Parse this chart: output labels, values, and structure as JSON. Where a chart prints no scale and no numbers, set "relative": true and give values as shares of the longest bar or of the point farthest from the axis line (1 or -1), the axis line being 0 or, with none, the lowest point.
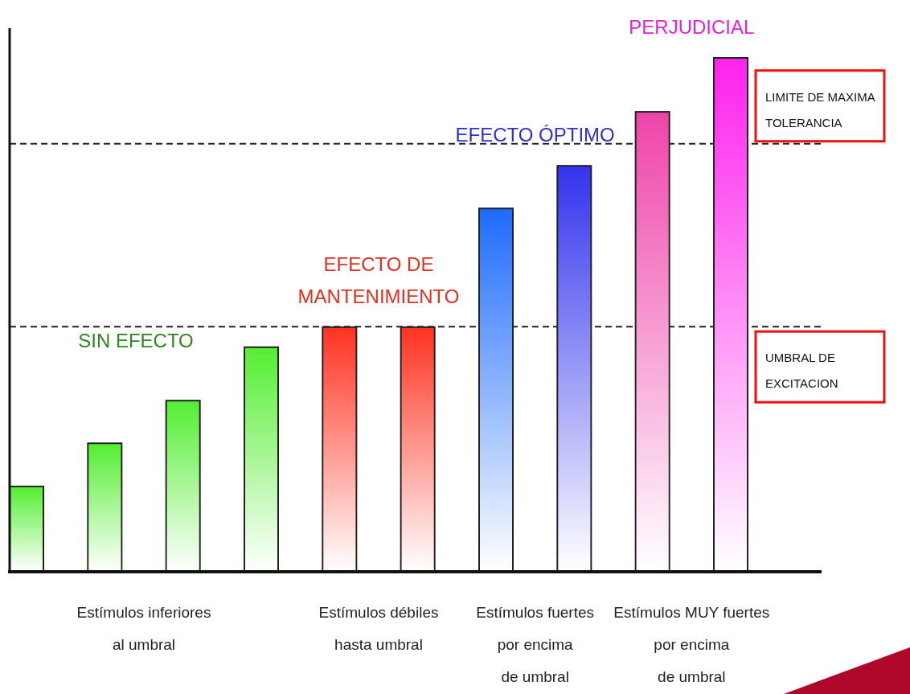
{
  "chart_data": {
    "type": "bar",
    "relative": true,
    "categories": [
      null,
      null,
      null,
      null,
      null,
      null,
      null,
      null,
      null,
      null
    ],
    "values": [
      0.166,
      0.25,
      0.333,
      0.437,
      0.476,
      0.476,
      0.707,
      0.79,
      0.895,
      1
    ],
    "colors": [
      "#55ee33",
      "#55ee33",
      "#55ee33",
      "#55ee33",
      "#ff3322",
      "#ff3322",
      "#1e6bff",
      "#3333ee",
      "#ee44aa",
      "#ff22ee"
    ],
    "ref_lines": [
      {
        "axis": "y",
        "value": 0.477,
        "label": "UMBRAL DE\nEXCITACION",
        "line_style": "dashed",
        "color": "#222222"
      },
      {
        "axis": "y",
        "value": 0.833,
        "label": "LIMITE DE MAXIMA\nTOLERANCIA",
        "line_style": "dashed",
        "color": "#222222"
      }
    ],
    "annotations": [
      "SIN EFECTO",
      "EFECTO DE\nMANTENIMIENTO",
      "EFECTO ÓPTIMO",
      "PERJUDICIAL",
      "Estímulos inferiores\nal umbral",
      "Estímulos débiles\nhasta umbral",
      "Estímulos fuertes\npor encima\nde umbral",
      "Estímulos MUY fuertes\npor encima\nde umbral"
    ]
  }
}
